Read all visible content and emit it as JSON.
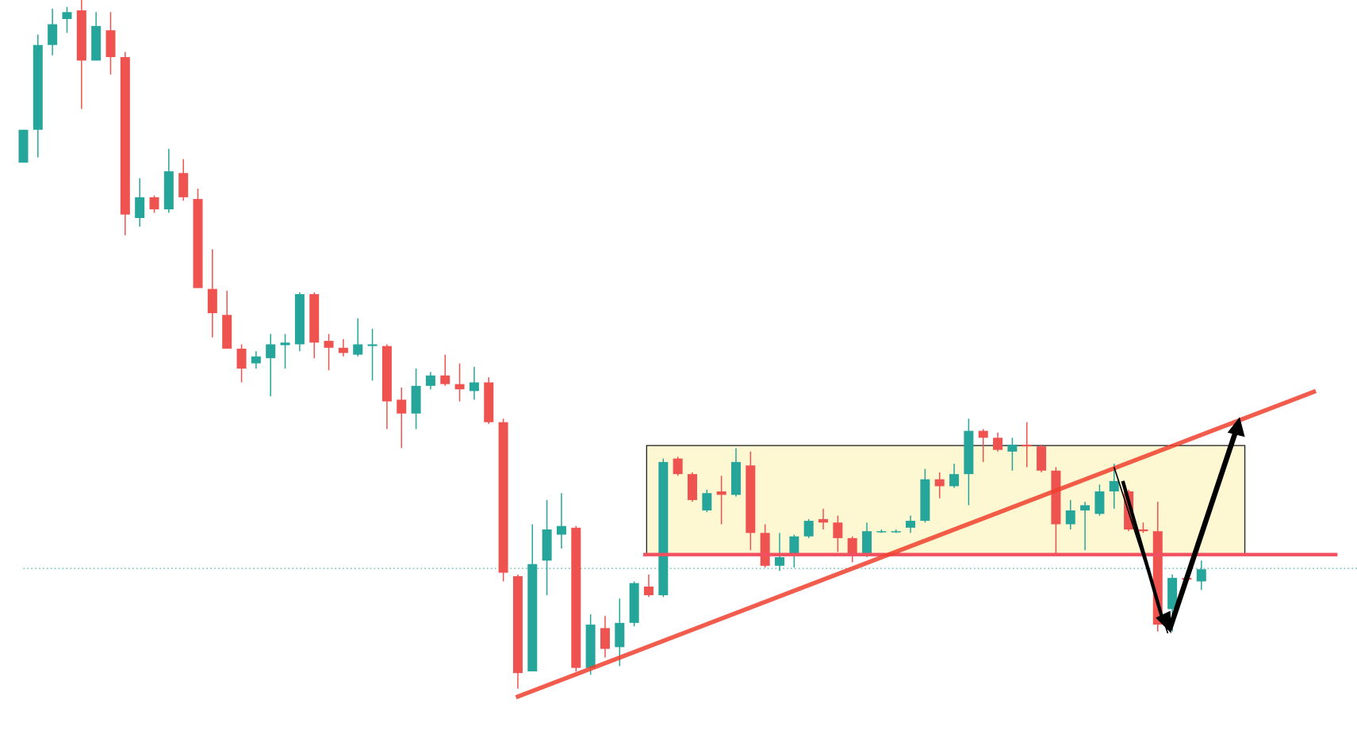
{
  "chart_data": {
    "type": "candlestick",
    "up_color": "#26a69a",
    "down_color": "#ef5350",
    "ylim": [
      0,
      843
    ],
    "open": [
      655,
      693,
      791,
      821,
      831,
      773,
      808,
      777,
      591,
      615,
      601,
      643,
      613,
      509,
      479,
      440,
      423,
      429,
      444,
      445,
      503,
      449,
      441,
      433,
      443,
      443,
      381,
      365,
      397,
      409,
      399,
      391,
      401,
      355,
      177,
      67,
      195,
      225,
      233,
      71,
      117,
      95,
      123,
      165,
      155,
      313,
      295,
      253,
      275,
      271,
      305,
      227,
      189,
      203,
      223,
      243,
      239,
      221,
      203,
      228,
      228,
      233,
      241,
      289,
      281,
      295,
      345,
      337,
      321,
      329,
      327,
      299,
      237,
      253,
      249,
      275,
      275,
      231,
      229,
      139,
      175,
      171
    ],
    "high": [
      693,
      803,
      833,
      835,
      843,
      829,
      829,
      783,
      637,
      617,
      671,
      659,
      625,
      555,
      507,
      445,
      437,
      457,
      457,
      505,
      505,
      457,
      451,
      475,
      463,
      445,
      395,
      417,
      413,
      433,
      423,
      419,
      407,
      359,
      179,
      237,
      265,
      273,
      235,
      133,
      131,
      151,
      171,
      179,
      313,
      315,
      297,
      277,
      293,
      325,
      321,
      237,
      227,
      225,
      243,
      255,
      247,
      223,
      239,
      231,
      231,
      247,
      301,
      297,
      307,
      359,
      347,
      343,
      337,
      355,
      329,
      303,
      265,
      263,
      283,
      307,
      277,
      239,
      263,
      179,
      183,
      195
    ],
    "low": [
      655,
      661,
      779,
      805,
      717,
      773,
      757,
      571,
      581,
      597,
      597,
      611,
      510,
      453,
      440,
      401,
      417,
      385,
      417,
      437,
      429,
      415,
      431,
      431,
      403,
      347,
      325,
      347,
      393,
      397,
      379,
      381,
      353,
      171,
      47,
      67,
      155,
      209,
      67,
      63,
      83,
      73,
      119,
      153,
      153,
      293,
      263,
      251,
      237,
      269,
      207,
      187,
      183,
      187,
      221,
      231,
      205,
      193,
      199,
      227,
      227,
      227,
      239,
      267,
      279,
      259,
      309,
      321,
      299,
      303,
      297,
      203,
      231,
      207,
      247,
      255,
      229,
      227,
      113,
      113,
      171,
      161
    ],
    "close": [
      693,
      791,
      815,
      829,
      773,
      813,
      777,
      595,
      615,
      601,
      645,
      615,
      510,
      481,
      440,
      417,
      431,
      445,
      447,
      503,
      447,
      441,
      435,
      445,
      445,
      379,
      365,
      397,
      409,
      399,
      393,
      401,
      355,
      181,
      65,
      191,
      231,
      235,
      71,
      121,
      93,
      123,
      169,
      155,
      309,
      295,
      265,
      273,
      271,
      309,
      227,
      189,
      199,
      223,
      241,
      239,
      221,
      201,
      229,
      229,
      229,
      241,
      289,
      281,
      295,
      345,
      337,
      323,
      329,
      327,
      299,
      237,
      253,
      259,
      275,
      287,
      231,
      229,
      121,
      175,
      173,
      185
    ]
  }
}
